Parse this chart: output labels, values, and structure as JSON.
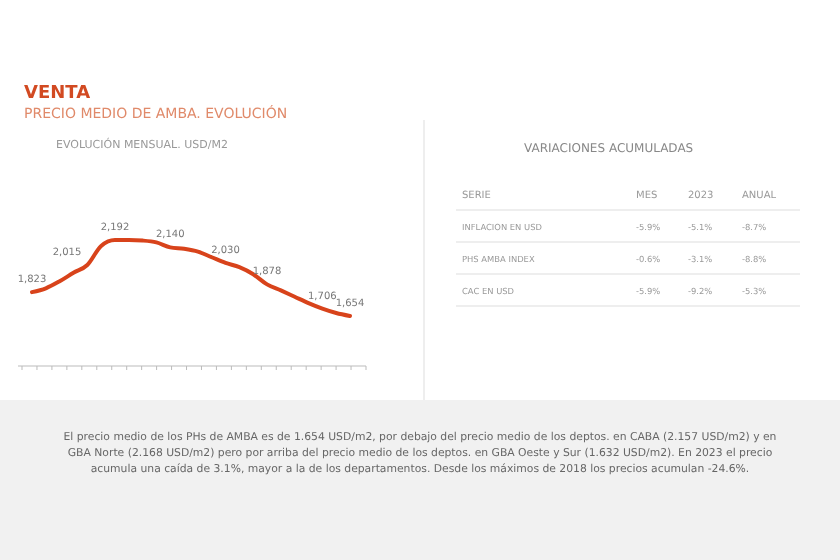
{
  "chart_data": [
    {
      "type": "line",
      "title": "VENTA",
      "subtitle": "PRECIO MEDIO DE AMBA. EVOLUCIÓN",
      "categories": [
        null,
        null,
        null,
        null,
        null,
        null,
        null,
        null,
        null,
        null,
        null,
        null,
        null,
        null,
        null,
        null,
        null,
        null,
        null,
        null,
        null,
        null,
        null,
        null
      ],
      "series": [
        {
          "color": "#d8431b",
          "values": [
            1823,
            1850,
            1900,
            1960,
            2015,
            2150,
            2192,
            2192,
            2188,
            2175,
            2140,
            2130,
            2110,
            2070,
            2030,
            2000,
            1950,
            1878,
            1835,
            1790,
            1745,
            1706,
            1675,
            1654
          ],
          "value_labels": [
            "1,823",
            null,
            null,
            null,
            "2,015",
            null,
            "2,192",
            null,
            null,
            null,
            "2,140",
            null,
            null,
            null,
            "2,030",
            null,
            null,
            "1,878",
            null,
            null,
            null,
            "1,706",
            null,
            "1,654"
          ]
        }
      ],
      "annotations": [
        "EVOLUCIÓN MENSUAL. USD/M2",
        "El precio medio de los PHs de AMBA es de 1.654 USD/m2, por debajo del precio medio de los deptos. en CABA (2.157 USD/m2) y en GBA Norte (2.168 USD/m2) pero por arriba del precio medio de los deptos. en GBA Oeste y Sur (1.632 USD/m2). En 2023 el precio acumula una caída de 3.1%, mayor a la de los departamentos. Desde los máximos de 2018 los precios acumulan -24.6%."
      ]
    },
    {
      "type": "other",
      "title": "VARIACIONES ACUMULADAS",
      "annotations": [
        "SERIE",
        "MES",
        "2023",
        "ANUAL",
        "INFLACION EN USD",
        "-5.9%",
        "-5.1%",
        "-8.7%",
        "PHS AMBA INDEX",
        "-0.6%",
        "-3.1%",
        "-8.8%",
        "CAC EN USD",
        "-5.9%",
        "-9.2%",
        "-5.3%"
      ]
    }
  ]
}
